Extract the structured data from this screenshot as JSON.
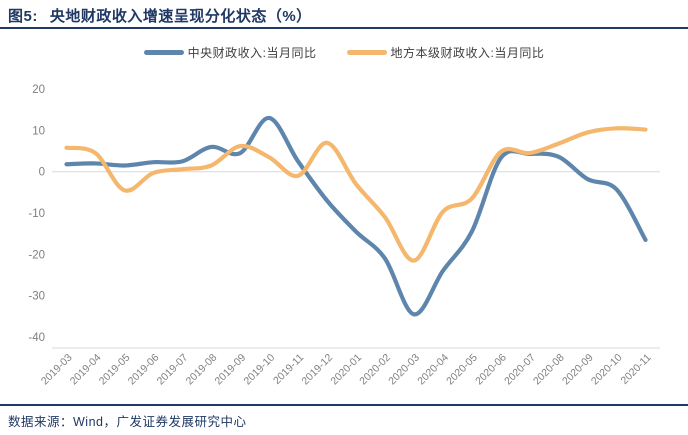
{
  "header": {
    "figure_label": "图5:",
    "title": "央地财政收入增速呈现分化状态（%）"
  },
  "footer": {
    "source": "数据来源：Wind，广发证券发展研究中心"
  },
  "colors": {
    "navy": "#1F3864",
    "central_line": "#5E86AC",
    "local_line": "#F4B76D",
    "axis_text": "#808080",
    "gridline": "#D9D9D9"
  },
  "chart_data": {
    "type": "line",
    "title": "央地财政收入增速呈现分化状态（%）",
    "unit": "%",
    "curve": "smoothed",
    "legend_position": "top-center",
    "grid": "zero line and bottom axis only",
    "categories": [
      "2019-03",
      "2019-04",
      "2019-05",
      "2019-06",
      "2019-07",
      "2019-08",
      "2019-09",
      "2019-10",
      "2019-11",
      "2019-12",
      "2020-01",
      "2020-02",
      "2020-03",
      "2020-04",
      "2020-05",
      "2020-06",
      "2020-07",
      "2020-08",
      "2020-09",
      "2020-10",
      "2020-11"
    ],
    "series": [
      {
        "name": "中央财政收入:当月同比",
        "color": "#5E86AC",
        "values": [
          1.8,
          2.0,
          1.5,
          2.3,
          2.5,
          6.0,
          4.5,
          13.0,
          2.5,
          -7.0,
          -14.5,
          -21.0,
          -34.5,
          -24.0,
          -14.5,
          3.3,
          4.3,
          3.6,
          -1.8,
          -4.3,
          -16.5
        ]
      },
      {
        "name": "地方本级财政收入:当月同比",
        "color": "#F4B76D",
        "values": [
          5.8,
          4.5,
          -4.5,
          -0.3,
          0.6,
          1.5,
          6.2,
          3.5,
          -1.0,
          7.0,
          -3.0,
          -11.0,
          -21.5,
          -9.7,
          -6.5,
          4.8,
          4.5,
          6.8,
          9.5,
          10.5,
          10.2
        ]
      }
    ],
    "ylim": [
      -40,
      20
    ],
    "yticks": [
      20,
      10,
      0,
      -10,
      -20,
      -30,
      -40
    ]
  }
}
